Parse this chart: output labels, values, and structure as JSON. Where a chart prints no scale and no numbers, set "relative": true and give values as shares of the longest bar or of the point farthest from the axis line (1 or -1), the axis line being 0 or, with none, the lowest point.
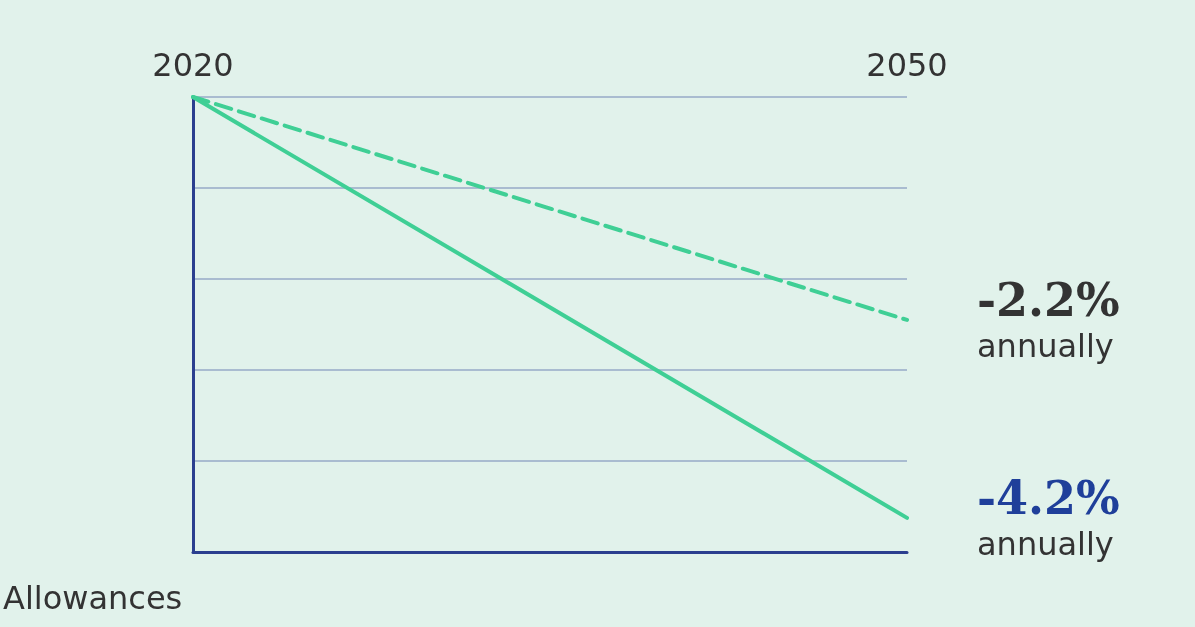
{
  "chart_data": {
    "type": "line",
    "ylabel": "Allowances",
    "relative": true,
    "x": [
      2020,
      2050
    ],
    "xlim": [
      2020,
      2050
    ],
    "xticks": [
      2020,
      2050
    ],
    "series": [
      {
        "name": "-2.2% annually",
        "color": "#3fcf95",
        "line_style": "dashed",
        "values": [
          1,
          0.51
        ]
      },
      {
        "name": "-4.2% annually",
        "color": "#3fcf95",
        "line_style": "solid",
        "values": [
          1,
          0.075
        ]
      }
    ],
    "grid": "y",
    "marker": "none",
    "legend": false
  }
}
